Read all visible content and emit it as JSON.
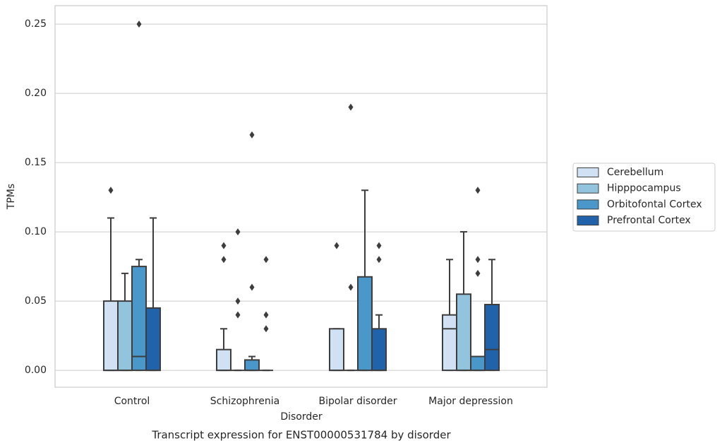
{
  "chart_data": {
    "type": "box",
    "title": "Transcript expression for ENST00000531784 by disorder",
    "x_label": "Disorder",
    "y_label": "TPMs",
    "categories": [
      "Control",
      "Schizophrenia",
      "Bipolar disorder",
      "Major depression"
    ],
    "ylim": [
      -0.0122,
      0.2633
    ],
    "yticks": [
      {
        "value": 0,
        "label": "0.00"
      },
      0.05,
      {
        "value": 0.1,
        "label": "0.10"
      },
      0.15,
      {
        "value": 0.2,
        "label": "0.20"
      },
      0.25
    ],
    "grid": true,
    "legend": "right",
    "series": [
      {
        "name": "Cerebellum",
        "color": "#cfe1f2",
        "boxes": [
          {
            "low": 0,
            "q1": 0,
            "median": 0,
            "q3": 0.05,
            "high": 0.11,
            "outliers": [
              0.13
            ]
          },
          {
            "low": 0,
            "q1": 0,
            "median": 0,
            "q3": 0.015,
            "high": 0.03,
            "outliers": [
              0.09,
              0.08
            ]
          },
          {
            "low": 0,
            "q1": 0,
            "median": 0,
            "q3": 0.03,
            "high": 0.03,
            "outliers": [
              0.09
            ]
          },
          {
            "low": 0,
            "q1": 0,
            "median": 0.03,
            "q3": 0.04,
            "high": 0.08,
            "outliers": []
          }
        ]
      },
      {
        "name": "Hipppocampus",
        "color": "#93c4de",
        "boxes": [
          {
            "low": 0,
            "q1": 0,
            "median": 0,
            "q3": 0.05,
            "high": 0.07,
            "outliers": []
          },
          {
            "low": 0,
            "q1": 0,
            "median": 0,
            "q3": 0,
            "high": 0,
            "outliers": [
              0.1,
              0.05,
              0.04
            ]
          },
          {
            "low": 0,
            "q1": 0,
            "median": 0,
            "q3": 0,
            "high": 0,
            "outliers": [
              0.19,
              0.06
            ]
          },
          {
            "low": 0,
            "q1": 0,
            "median": 0,
            "q3": 0.055,
            "high": 0.1,
            "outliers": []
          }
        ]
      },
      {
        "name": "Orbitofontal Cortex",
        "color": "#4a98c9",
        "boxes": [
          {
            "low": 0,
            "q1": 0,
            "median": 0.01,
            "q3": 0.075,
            "high": 0.08,
            "outliers": [
              0.25
            ]
          },
          {
            "low": 0,
            "q1": 0,
            "median": 0,
            "q3": 0.0075,
            "high": 0.01,
            "outliers": [
              0.17,
              0.06
            ]
          },
          {
            "low": 0,
            "q1": 0,
            "median": 0,
            "q3": 0.0675,
            "high": 0.13,
            "outliers": []
          },
          {
            "low": 0,
            "q1": 0,
            "median": 0,
            "q3": 0.01,
            "high": 0.01,
            "outliers": [
              0.13,
              0.08,
              0.07
            ]
          }
        ]
      },
      {
        "name": "Prefrontal Cortex",
        "color": "#2163aa",
        "boxes": [
          {
            "low": 0,
            "q1": 0,
            "median": 0,
            "q3": 0.045,
            "high": 0.11,
            "outliers": []
          },
          {
            "low": 0,
            "q1": 0,
            "median": 0,
            "q3": 0,
            "high": 0,
            "outliers": [
              0.08,
              0.04,
              0.03
            ]
          },
          {
            "low": 0,
            "q1": 0,
            "median": 0,
            "q3": 0.03,
            "high": 0.04,
            "outliers": [
              0.09,
              0.08
            ]
          },
          {
            "low": 0,
            "q1": 0,
            "median": 0.015,
            "q3": 0.0475,
            "high": 0.08,
            "outliers": []
          }
        ]
      }
    ]
  }
}
